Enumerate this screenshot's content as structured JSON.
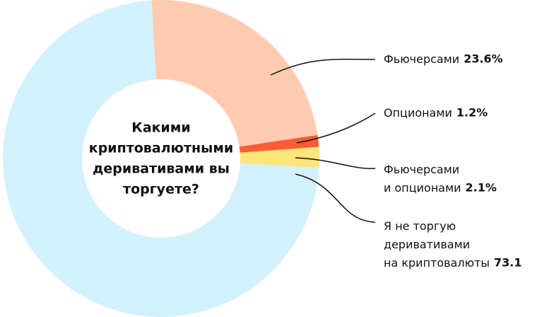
{
  "chart_data": {
    "type": "donut",
    "title": "Какими\nкриптовалютными\nдеривативами вы\nторгуете?",
    "categories": [
      "Фьючерсами",
      "Опционами",
      "Фьючерсами\nи опционами",
      "Я не торгую\nдеривативами\nна криптовалюты"
    ],
    "values": [
      23.6,
      1.2,
      2.1,
      73.1
    ],
    "value_labels": [
      "23.6%",
      "1.2%",
      "2.1%",
      "73.1"
    ],
    "colors": [
      "#ffcbb0",
      "#ff5c35",
      "#ffe57a",
      "#d3f1fc"
    ]
  }
}
